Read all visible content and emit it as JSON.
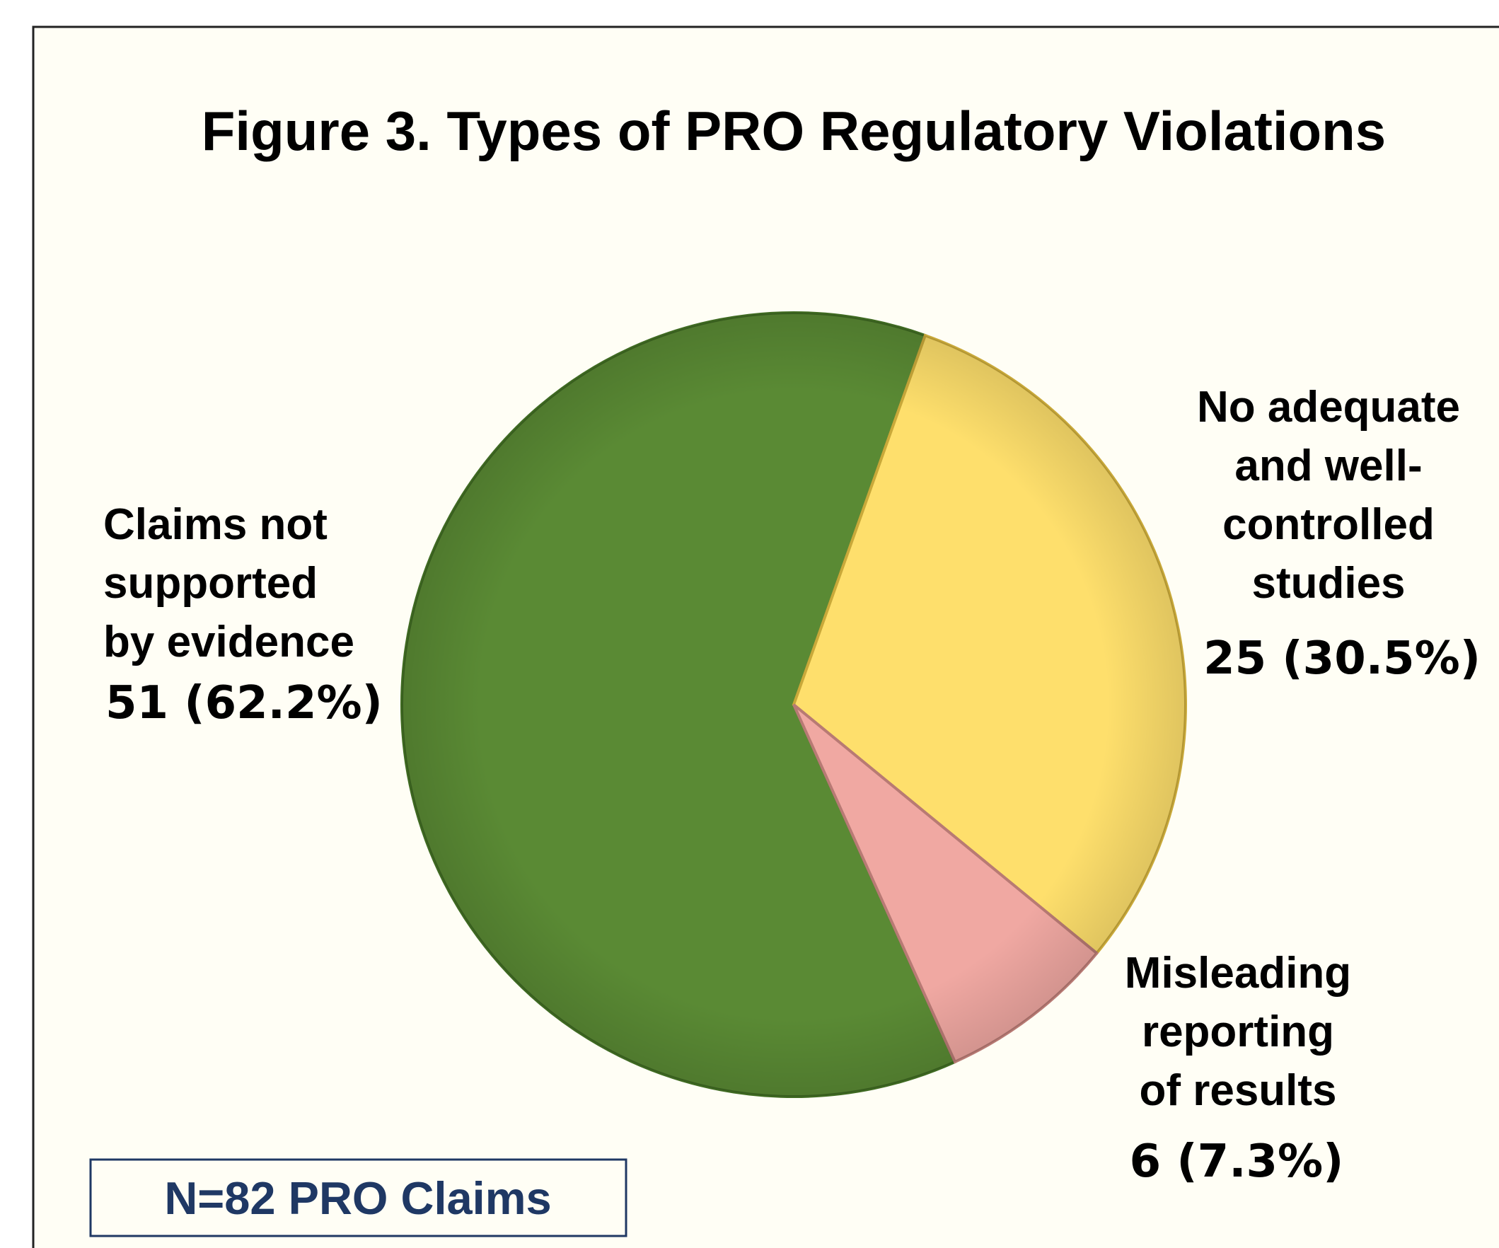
{
  "chart_data": {
    "type": "pie",
    "title": "Figure 3. Types of PRO Regulatory Violations",
    "categories": [
      "Claims not\nsupported\nby evidence",
      "No adequate\nand well-\ncontrolled\nstudies",
      "Misleading\nreporting\nof results"
    ],
    "values": [
      51,
      25,
      6
    ],
    "value_labels": [
      "51 (62.2%)",
      "25 (30.5%)",
      "6 (7.3%)"
    ],
    "colors": [
      "#5a8a34",
      "#fedf6c",
      "#f0a8a2"
    ],
    "annotation": "N=82 PRO Claims"
  }
}
